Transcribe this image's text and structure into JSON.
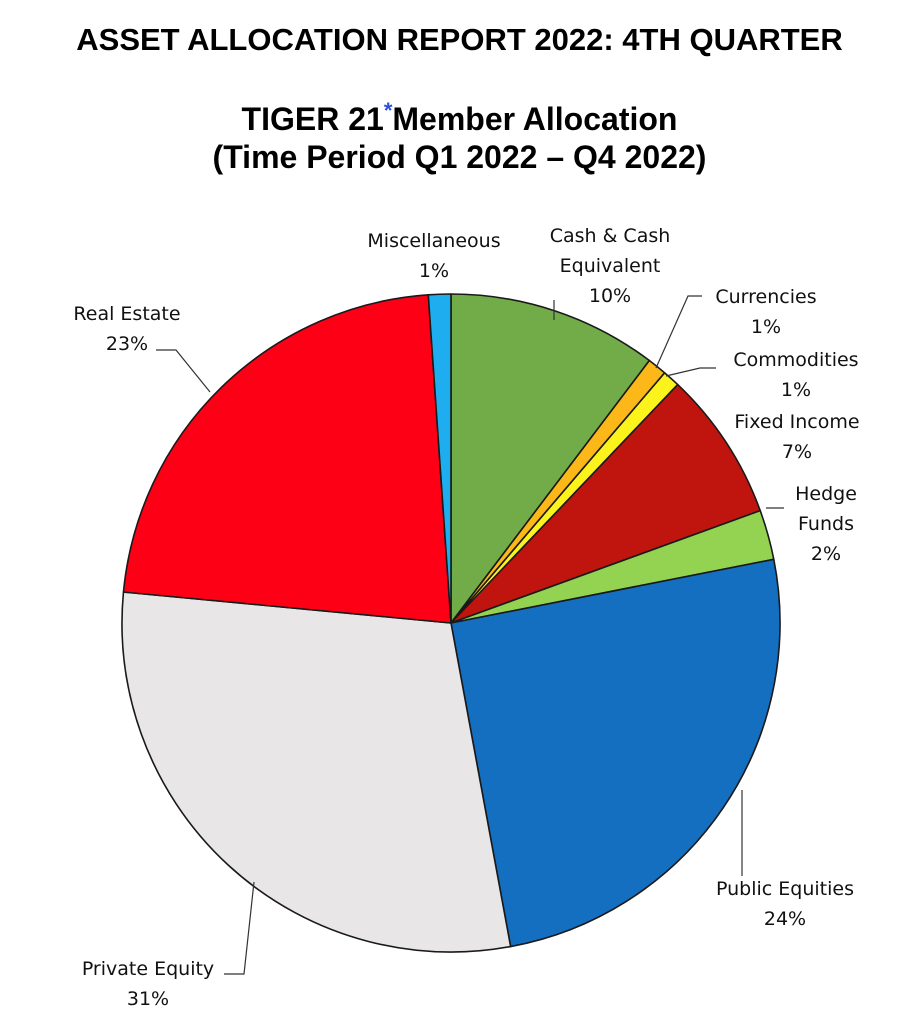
{
  "header": {
    "report_title": "ASSET ALLOCATION REPORT 2022: 4TH QUARTER",
    "chart_title_main": "TIGER 21",
    "chart_title_asterisk": "*",
    "chart_title_rest": "Member Allocation",
    "chart_title_line2": "(Time Period Q1 2022 – Q4 2022)"
  },
  "chart_data": {
    "type": "pie",
    "title": "TIGER 21* Member Allocation (Time Period Q1 2022 – Q4 2022)",
    "slices": [
      {
        "label": "Cash & Cash Equivalent",
        "label_lines": [
          "Cash & Cash",
          "Equivalent"
        ],
        "value": 10,
        "value_label": "10%",
        "color": "#72ac48"
      },
      {
        "label": "Currencies",
        "label_lines": [
          "Currencies"
        ],
        "value": 1,
        "value_label": "1%",
        "color": "#fbb818"
      },
      {
        "label": "Commodities",
        "label_lines": [
          "Commodities"
        ],
        "value": 1,
        "value_label": "1%",
        "color": "#fdf31c"
      },
      {
        "label": "Fixed Income",
        "label_lines": [
          "Fixed Income"
        ],
        "value": 7,
        "value_label": "7%",
        "color": "#c0150f"
      },
      {
        "label": "Hedge Funds",
        "label_lines": [
          "Hedge",
          "Funds"
        ],
        "value": 2,
        "value_label": "2%",
        "color": "#93d351"
      },
      {
        "label": "Public Equities",
        "label_lines": [
          "Public Equities"
        ],
        "value": 24,
        "value_label": "24%",
        "color": "#146fc0"
      },
      {
        "label": "Private Equity",
        "label_lines": [
          "Private Equity"
        ],
        "value": 31,
        "value_label": "31%",
        "color": "#e8e6e7"
      },
      {
        "label": "Real Estate",
        "label_lines": [
          "Real Estate"
        ],
        "value": 23,
        "value_label": "23%",
        "color": "#fe0016"
      },
      {
        "label": "Miscellaneous",
        "label_lines": [
          "Miscellaneous"
        ],
        "value": 1,
        "value_label": "1%",
        "color": "#1eaeef"
      }
    ]
  }
}
